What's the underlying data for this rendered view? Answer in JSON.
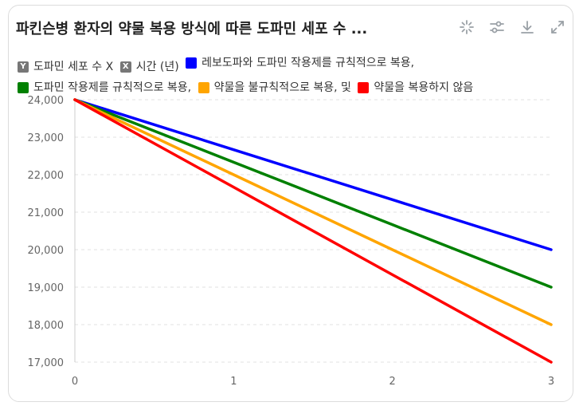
{
  "title": "파킨슨병 환자의 약물 복용 방식에 따른 도파민 세포 수 ...",
  "toolbar": {
    "icons": [
      "sparkle-icon",
      "sliders-icon",
      "download-icon",
      "expand-icon"
    ]
  },
  "legend": {
    "axis_items": [
      {
        "badge": "Y",
        "label": "도파민 세포 수 X"
      },
      {
        "badge": "X",
        "label": "시간 (년)"
      }
    ]
  },
  "colors": {
    "axis_badge": "#777777",
    "grid": "#e0e0e0"
  },
  "chart_data": {
    "type": "line",
    "title": "파킨슨병 환자의 약물 복용 방식에 따른 도파민 세포 수 ...",
    "xlabel": "시간 (년)",
    "ylabel": "도파민 세포 수",
    "x": [
      0,
      1,
      2,
      3
    ],
    "x_ticks": [
      "0",
      "1",
      "2",
      "3"
    ],
    "ylim": [
      17000,
      24000
    ],
    "y_ticks": [
      "17,000",
      "18,000",
      "19,000",
      "20,000",
      "21,000",
      "22,000",
      "23,000",
      "24,000"
    ],
    "grid": "horizontal dashed",
    "legend_position": "top",
    "series": [
      {
        "name": "레보도파와 도파민 작용제를 규칙적으로 복용,",
        "color": "#0000ff",
        "values": [
          24000,
          22667,
          21333,
          20000
        ]
      },
      {
        "name": "도파민 작용제를 규칙적으로 복용,",
        "color": "#008000",
        "values": [
          24000,
          22333,
          20667,
          19000
        ]
      },
      {
        "name": "약물을 불규칙적으로 복용, 및",
        "color": "#ffa500",
        "values": [
          24000,
          22000,
          20000,
          18000
        ]
      },
      {
        "name": "약물을 복용하지 않음",
        "color": "#ff0000",
        "values": [
          24000,
          21667,
          19333,
          17000
        ]
      }
    ]
  }
}
